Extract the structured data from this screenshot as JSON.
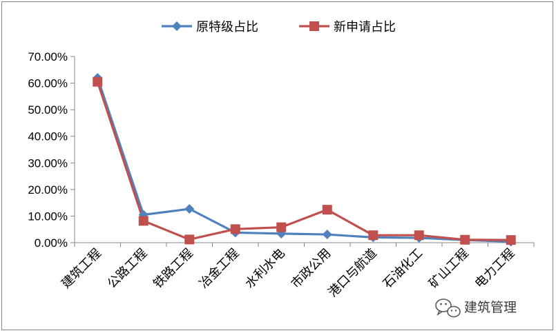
{
  "chart_data": {
    "type": "line",
    "categories": [
      "建筑工程",
      "公路工程",
      "铁路工程",
      "冶金工程",
      "水利水电",
      "市政公用",
      "港口与航道",
      "石油化工",
      "矿山工程",
      "电力工程"
    ],
    "series": [
      {
        "name": "原特级占比",
        "color": "#4F81BD",
        "marker": "diamond",
        "values": [
          0.62,
          0.105,
          0.127,
          0.038,
          0.034,
          0.031,
          0.02,
          0.018,
          0.01,
          0.004
        ]
      },
      {
        "name": "新申请占比",
        "color": "#C0504D",
        "marker": "square",
        "values": [
          0.605,
          0.082,
          0.012,
          0.051,
          0.058,
          0.124,
          0.028,
          0.028,
          0.011,
          0.01
        ]
      }
    ],
    "ylim": [
      0,
      0.7
    ],
    "yticks": [
      0,
      0.1,
      0.2,
      0.3,
      0.4,
      0.5,
      0.6,
      0.7
    ],
    "ytick_labels": [
      "0.00%",
      "10.00%",
      "20.00%",
      "30.00%",
      "40.00%",
      "50.00%",
      "60.00%",
      "70.00%"
    ],
    "legend": "top-center",
    "grid": false
  },
  "watermark": {
    "text": "建筑管理",
    "icon": "wechat-icon"
  }
}
